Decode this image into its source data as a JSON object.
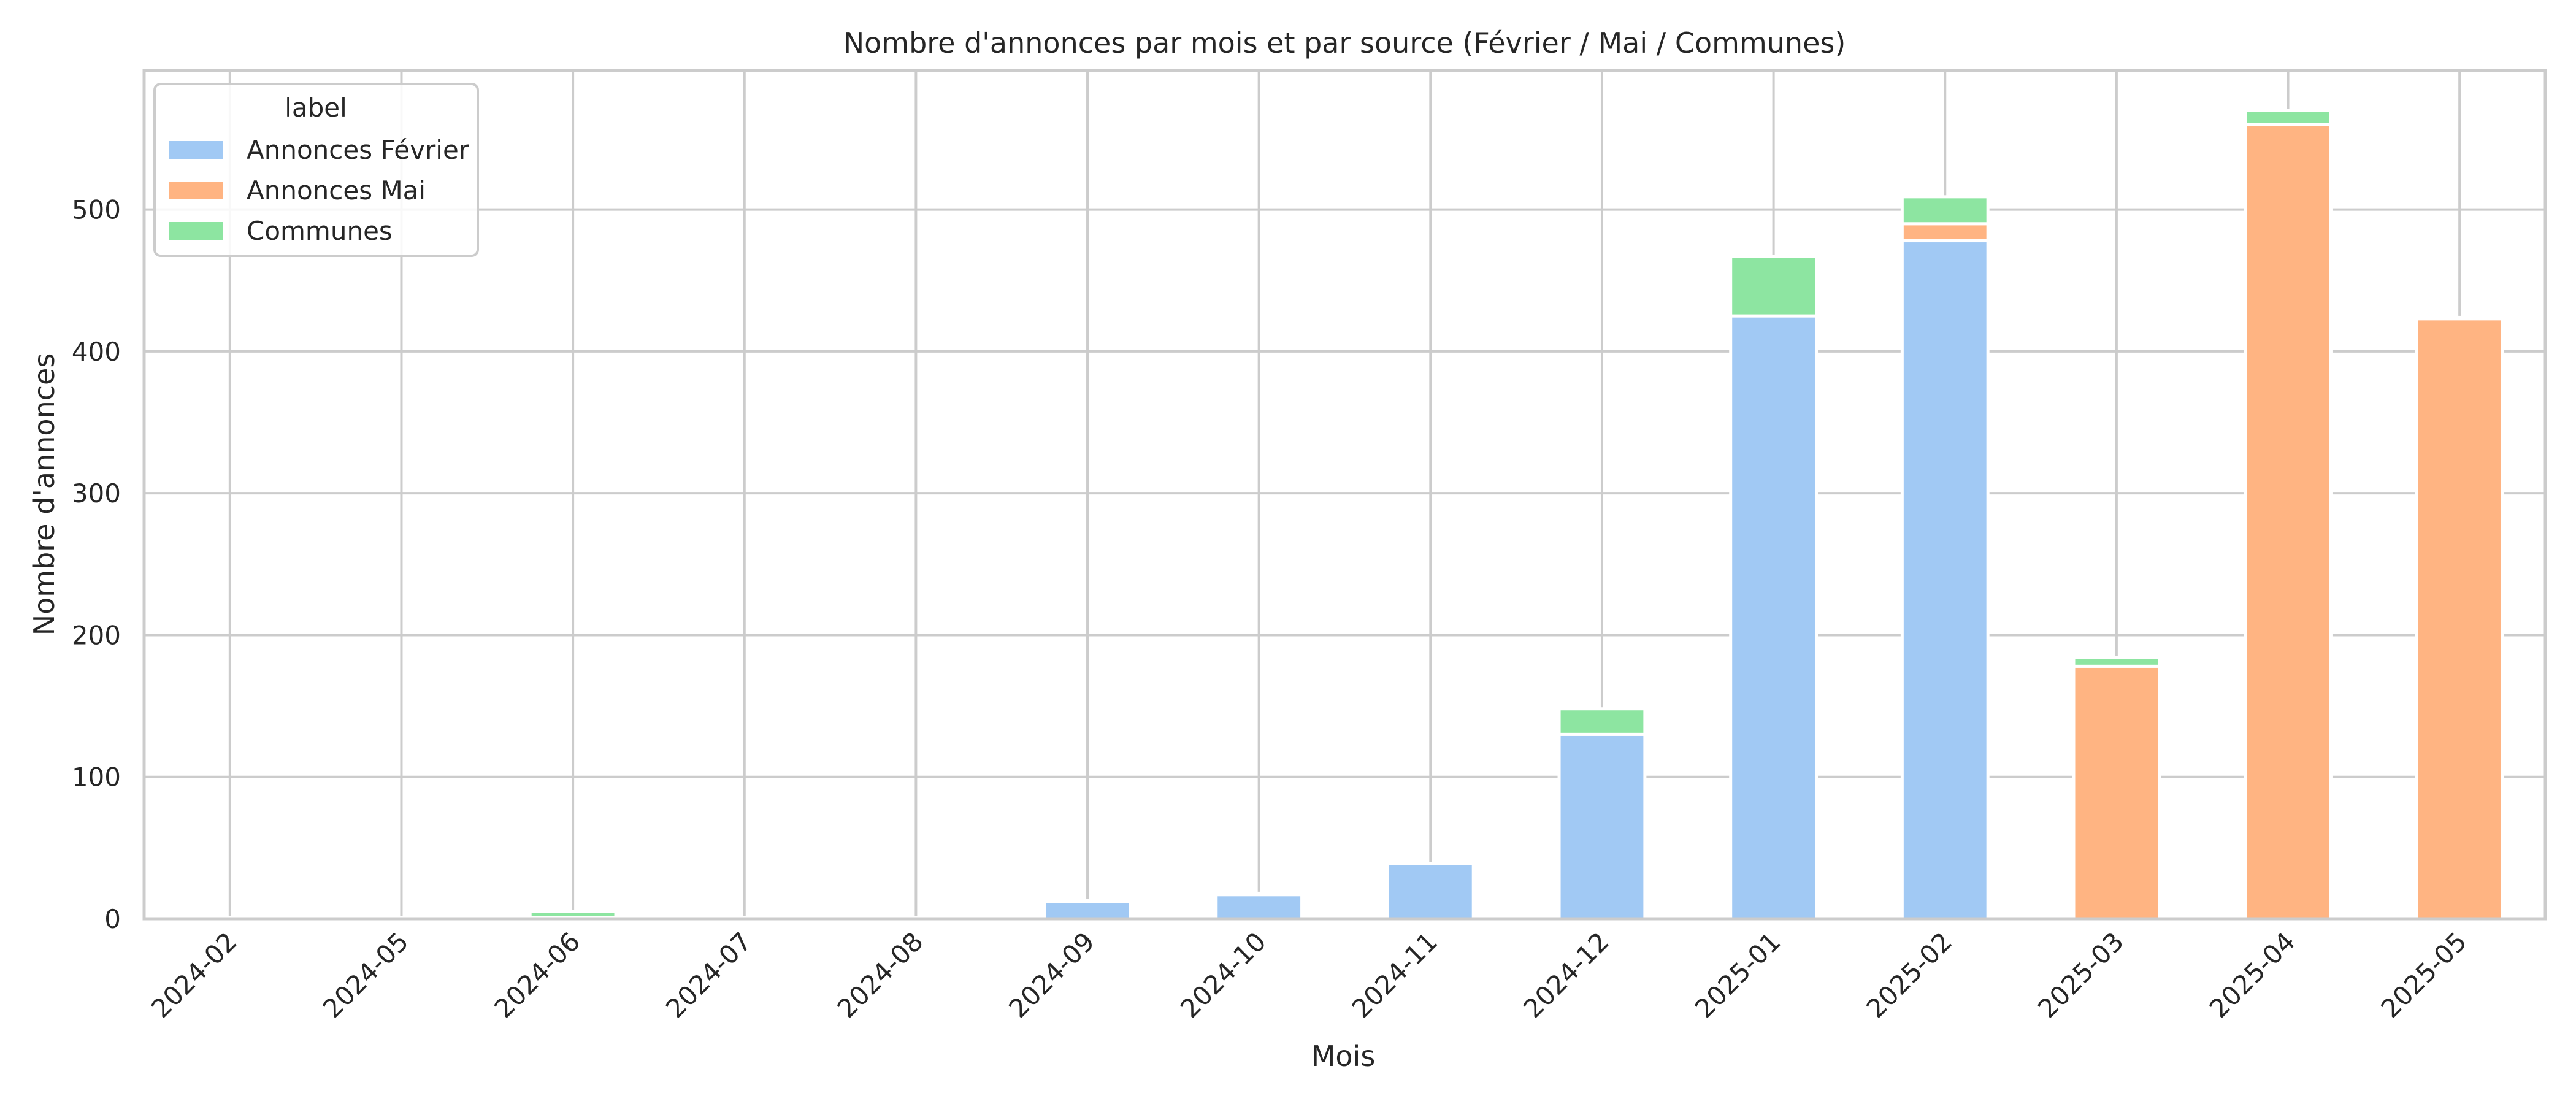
{
  "chart_data": {
    "type": "bar",
    "stacked": true,
    "title": "Nombre d'annonces par mois et par source (Février / Mai / Communes)",
    "xlabel": "Mois",
    "ylabel": "Nombre d'annonces",
    "ylim": [
      0,
      598
    ],
    "yticks": [
      0,
      100,
      200,
      300,
      400,
      500
    ],
    "grid": true,
    "legend": {
      "title": "label",
      "placement": "top-left"
    },
    "categories": [
      "2024-02",
      "2024-05",
      "2024-06",
      "2024-07",
      "2024-08",
      "2024-09",
      "2024-10",
      "2024-11",
      "2024-12",
      "2025-01",
      "2025-02",
      "2025-03",
      "2025-04",
      "2025-05"
    ],
    "series": [
      {
        "name": "Annonces Février",
        "color": "#a1c9f4",
        "values": [
          1,
          1,
          1,
          1,
          1,
          12,
          17,
          39,
          130,
          425,
          478,
          0,
          0,
          0
        ]
      },
      {
        "name": "Annonces Mai",
        "color": "#ffb482",
        "values": [
          0,
          0,
          0,
          0,
          0,
          0,
          0,
          0,
          0,
          0,
          12,
          178,
          560,
          423
        ]
      },
      {
        "name": "Communes",
        "color": "#8de5a1",
        "values": [
          0,
          0,
          4,
          0,
          0,
          1,
          1,
          0,
          18,
          42,
          19,
          6,
          10,
          1
        ]
      }
    ]
  }
}
